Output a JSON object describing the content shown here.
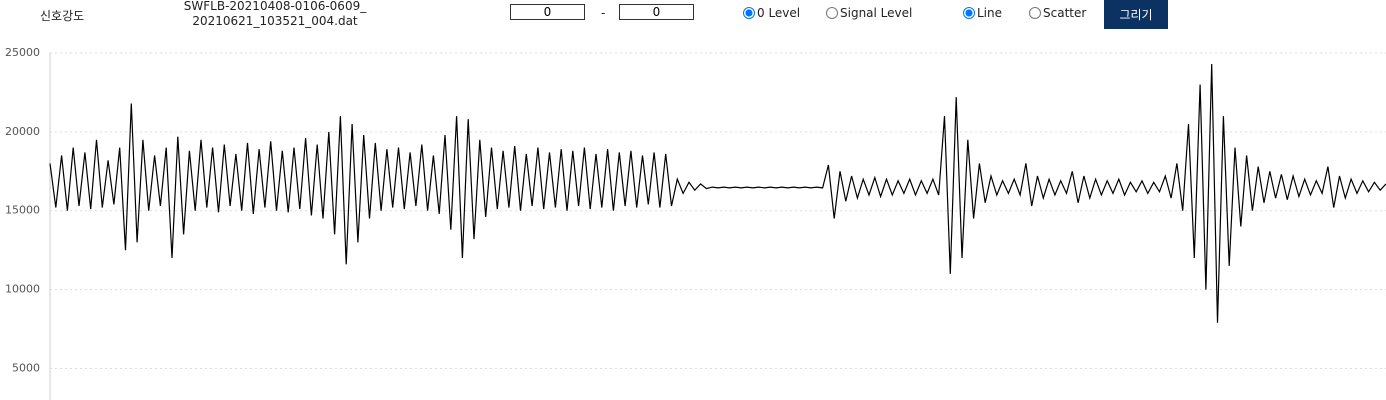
{
  "toolbar": {
    "label": "신호강도",
    "filename": "SWFLB-20210408-0106-0609_20210621_103521_004.dat",
    "range_from": "0",
    "range_separator": "-",
    "range_to": "0",
    "level_options": [
      {
        "label": "0 Level",
        "checked": true
      },
      {
        "label": "Signal Level",
        "checked": false
      }
    ],
    "mode_options": [
      {
        "label": "Line",
        "checked": true
      },
      {
        "label": "Scatter",
        "checked": false
      }
    ],
    "draw_button": "그리기"
  },
  "chart_data": {
    "type": "line",
    "color": "#000000",
    "ylim": [
      3000,
      25000
    ],
    "yticks": [
      5000,
      10000,
      15000,
      20000,
      25000
    ],
    "grid": true,
    "values": [
      18000,
      15200,
      18500,
      15000,
      19000,
      15300,
      18700,
      15100,
      19500,
      15200,
      18200,
      15400,
      19000,
      12500,
      21800,
      13000,
      19500,
      15000,
      18500,
      15300,
      19000,
      12000,
      19700,
      13500,
      18800,
      15000,
      19500,
      15200,
      19000,
      14900,
      19200,
      15300,
      18600,
      15000,
      19300,
      14800,
      18900,
      15200,
      19400,
      15000,
      18800,
      14900,
      19000,
      15100,
      19600,
      14700,
      19200,
      14500,
      20000,
      13500,
      21000,
      11600,
      20500,
      13000,
      19800,
      14500,
      19300,
      15000,
      18900,
      15200,
      19000,
      15100,
      18700,
      15300,
      19200,
      15000,
      18500,
      14800,
      19800,
      13800,
      21000,
      12000,
      20800,
      13200,
      19500,
      14600,
      19000,
      15100,
      18800,
      15200,
      19100,
      15000,
      18600,
      15300,
      19000,
      15100,
      18700,
      15200,
      18900,
      15000,
      18800,
      15300,
      19000,
      15100,
      18600,
      15200,
      18900,
      15000,
      18700,
      15300,
      18800,
      15200,
      18500,
      15400,
      18700,
      15200,
      18600,
      15300,
      17000,
      16100,
      16800,
      16300,
      16700,
      16400,
      16500,
      16450,
      16500,
      16450,
      16500,
      16450,
      16500,
      16450,
      16500,
      16450,
      16500,
      16450,
      16500,
      16450,
      16500,
      16450,
      16500,
      16450,
      16500,
      16450,
      17900,
      14500,
      17500,
      15600,
      17200,
      15800,
      17000,
      16000,
      17100,
      15900,
      17000,
      16000,
      16900,
      16100,
      17000,
      16000,
      16900,
      16100,
      17000,
      16000,
      21000,
      11000,
      22200,
      12000,
      19500,
      14500,
      18000,
      15500,
      17200,
      16000,
      16900,
      16100,
      17000,
      16000,
      18000,
      15300,
      17200,
      15800,
      17000,
      16000,
      16900,
      16100,
      17500,
      15500,
      17200,
      15800,
      17000,
      16000,
      16900,
      16100,
      17000,
      16000,
      16800,
      16200,
      16900,
      16100,
      16800,
      16200,
      17200,
      15800,
      18000,
      15000,
      20500,
      12000,
      23000,
      10000,
      24300,
      7900,
      21000,
      11500,
      19000,
      14000,
      18500,
      15000,
      17800,
      15500,
      17500,
      15800,
      17300,
      15700,
      17200,
      15900,
      17000,
      16000,
      16900,
      16100,
      17800,
      15200,
      17200,
      15800,
      17000,
      16100,
      16900,
      16200,
      16800,
      16300,
      16700
    ]
  }
}
